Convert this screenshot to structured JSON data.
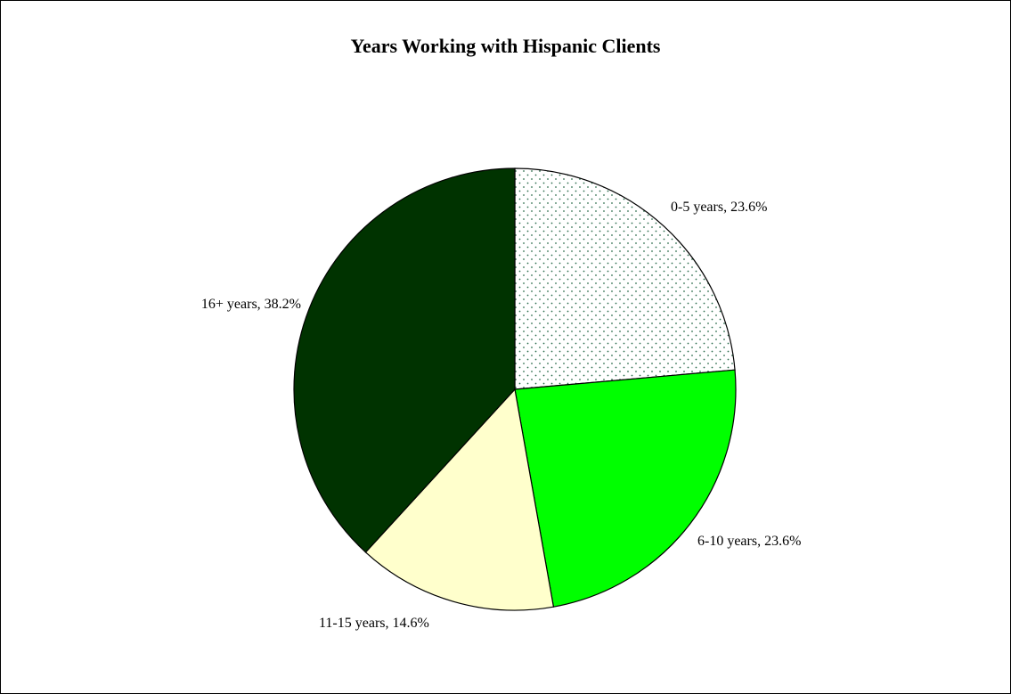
{
  "chart_data": {
    "type": "pie",
    "title": "Years Working with Hispanic Clients",
    "slices": [
      {
        "label": "0-5 years",
        "value": 23.6,
        "label_text": "0-5 years, 23.6%",
        "color": "#ffffff",
        "pattern": "dots"
      },
      {
        "label": "6-10 years",
        "value": 23.6,
        "label_text": "6-10 years, 23.6%",
        "color": "#00ff00"
      },
      {
        "label": "11-15 years",
        "value": 14.6,
        "label_text": "11-15 years, 14.6%",
        "color": "#ffffcc"
      },
      {
        "label": "16+ years",
        "value": 38.2,
        "label_text": "16+ years, 38.2%",
        "color": "#003300"
      }
    ],
    "start_angle": "12 o'clock",
    "direction": "clockwise",
    "legend": "none"
  }
}
